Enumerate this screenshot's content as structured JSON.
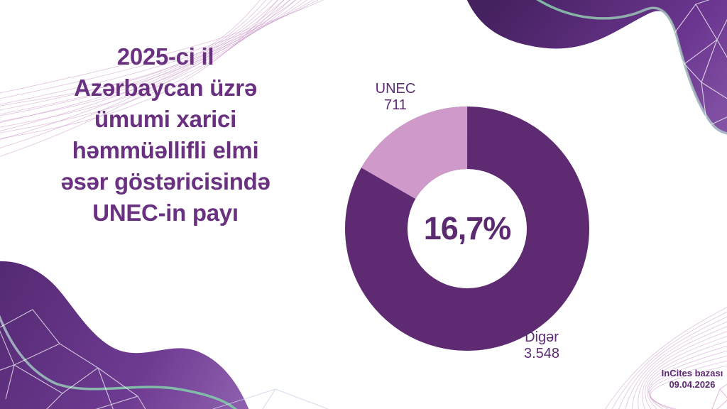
{
  "slide": {
    "title": "2025-ci il\nAzərbaycan üzrə\nümumi xarici\nhəmmüəllifli elmi\nəsər göstəricisində\nUNEC-in payı",
    "source_note": "InCites bazası\n09.04.2026"
  },
  "chart_data": {
    "type": "pie",
    "donut": true,
    "title": "2025-ci il Azərbaycan üzrə ümumi xarici həmmüəllifli elmi əsər göstəricisində UNEC-in payı",
    "slices": [
      {
        "label": "UNEC",
        "value": 711,
        "value_label": "711",
        "color": "#CF99C9",
        "percent": 16.7
      },
      {
        "label": "Digər",
        "value": 3548,
        "value_label": "3.548",
        "color": "#5E2B72",
        "percent": 83.3
      }
    ],
    "center_label": "16,7%",
    "start_angle_deg": -60,
    "direction": "clockwise",
    "legend_position": "none",
    "inner_radius_ratio": 0.49
  },
  "colors": {
    "background": "#FFFFFF",
    "title_text": "#6A3181",
    "center_text": "#5C2A70",
    "label_text": "#5E2B75",
    "accent_teal": "#7FC9A9",
    "wave_line": "#C791C4",
    "blob_dark": "#45215F",
    "blob_light": "#9263B1",
    "mesh_line": "#FFFFFF"
  }
}
